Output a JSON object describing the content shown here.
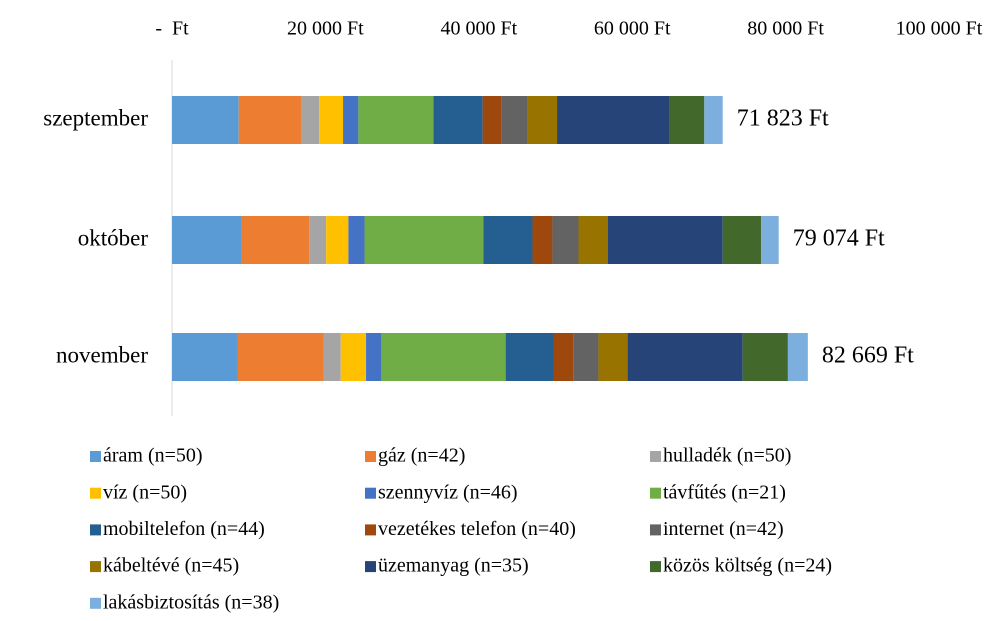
{
  "chart_data": {
    "type": "stacked-bar-horizontal",
    "categories": [
      "szeptember",
      "október",
      "november"
    ],
    "series": [
      {
        "name": "áram (n=50)",
        "color": "#5b9bd5",
        "values": [
          8700,
          9000,
          8600
        ]
      },
      {
        "name": "gáz (n=42)",
        "color": "#ed7d31",
        "values": [
          8200,
          8900,
          11200
        ]
      },
      {
        "name": "hulladék (n=50)",
        "color": "#a5a5a5",
        "values": [
          2300,
          2200,
          2200
        ]
      },
      {
        "name": "víz (n=50)",
        "color": "#ffc000",
        "values": [
          3100,
          2900,
          3300
        ]
      },
      {
        "name": "szennyvíz (n=46)",
        "color": "#4472c4",
        "values": [
          2000,
          2100,
          2000
        ]
      },
      {
        "name": "távfűtés (n=21)",
        "color": "#70ad47",
        "values": [
          9800,
          15500,
          16200
        ]
      },
      {
        "name": "mobiltelefon (n=44)",
        "color": "#255e91",
        "values": [
          6400,
          6400,
          6300
        ]
      },
      {
        "name": "vezetékes telefon (n=40)",
        "color": "#9e480e",
        "values": [
          2500,
          2600,
          2500
        ]
      },
      {
        "name": "internet (n=42)",
        "color": "#636363",
        "values": [
          3400,
          3400,
          3300
        ]
      },
      {
        "name": "kábeltévé (n=45)",
        "color": "#997300",
        "values": [
          3800,
          3800,
          3800
        ]
      },
      {
        "name": "üzemanyag (n=35)",
        "color": "#264478",
        "values": [
          14600,
          15000,
          15000
        ]
      },
      {
        "name": "közös költség (n=24)",
        "color": "#43682b",
        "values": [
          4600,
          5000,
          5900
        ]
      },
      {
        "name": "lakásbiztosítás (n=38)",
        "color": "#7cafdd",
        "values": [
          2400,
          2300,
          2600
        ]
      }
    ],
    "total_labels": [
      "71 823 Ft",
      "79 074 Ft",
      "82 669 Ft"
    ],
    "xlim": [
      0,
      103000
    ],
    "xticks": [
      {
        "value": 0,
        "label": "-  Ft"
      },
      {
        "value": 20000,
        "label": "20 000 Ft"
      },
      {
        "value": 40000,
        "label": "40 000 Ft"
      },
      {
        "value": 60000,
        "label": "60 000 Ft"
      },
      {
        "value": 80000,
        "label": "80 000 Ft"
      },
      {
        "value": 100000,
        "label": "100 000 Ft"
      }
    ],
    "grid": false,
    "legend": "bottom"
  }
}
